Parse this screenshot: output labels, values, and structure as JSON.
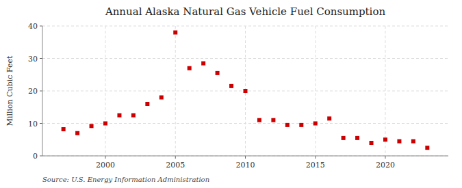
{
  "chart_data": {
    "type": "scatter",
    "title": "Annual Alaska Natural Gas Vehicle Fuel Consumption",
    "ylabel": "Million Cubic Feet",
    "source": "Source: U.S. Energy Information Administration",
    "x": [
      1997,
      1998,
      1999,
      2000,
      2001,
      2002,
      2003,
      2004,
      2005,
      2006,
      2007,
      2008,
      2009,
      2010,
      2011,
      2012,
      2013,
      2014,
      2015,
      2016,
      2017,
      2018,
      2019,
      2020,
      2021,
      2022,
      2023
    ],
    "values": [
      8.2,
      7.0,
      9.2,
      10.0,
      12.5,
      12.5,
      16.0,
      18.0,
      38.0,
      27.0,
      28.5,
      25.5,
      21.5,
      20.0,
      11.0,
      11.0,
      9.5,
      9.5,
      10.0,
      11.5,
      5.5,
      5.5,
      4.0,
      5.0,
      4.5,
      4.5,
      2.5
    ],
    "color": "#cc0000",
    "marker": "square",
    "xlim": [
      1995.5,
      2024.5
    ],
    "ylim": [
      0,
      40
    ],
    "xticks": [
      2000,
      2005,
      2010,
      2015,
      2020
    ],
    "yticks": [
      0,
      10,
      20,
      30,
      40
    ],
    "grid": true
  }
}
